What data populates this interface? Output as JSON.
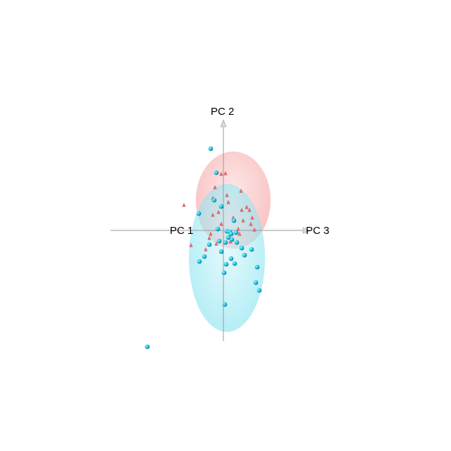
{
  "chart_data": {
    "type": "scatter",
    "projection": "3d-pca",
    "axes": [
      "PC 1",
      "PC 2",
      "PC 3"
    ],
    "grid": false,
    "legend": "none",
    "colors": {
      "group_red": "#f26d6d",
      "group_cyan": "#19c3e0",
      "ellipse_red": "#f7a1a1",
      "ellipse_cyan": "#8fe6f2",
      "axis": "#9a9a9a"
    },
    "ellipsoids": [
      {
        "group": "red",
        "cx": 0.14,
        "cy": 0.43,
        "rx": 0.53,
        "ry": 0.69,
        "color": "#f7a1a1"
      },
      {
        "group": "cyan",
        "cx": 0.05,
        "cy": -0.39,
        "rx": 0.54,
        "ry": 1.05,
        "color": "#8fe6f2"
      }
    ],
    "series": [
      {
        "marker": "cone",
        "color": "#f26d6d",
        "points": [
          {
            "x": -0.03,
            "y": 0.8
          },
          {
            "x": 0.03,
            "y": 0.81
          },
          {
            "x": -0.12,
            "y": 0.61
          },
          {
            "x": -0.15,
            "y": 0.46
          },
          {
            "x": 0.05,
            "y": 0.5
          },
          {
            "x": 0.07,
            "y": 0.4
          },
          {
            "x": 0.25,
            "y": 0.56
          },
          {
            "x": 0.33,
            "y": 0.33
          },
          {
            "x": 0.37,
            "y": 0.29
          },
          {
            "x": 0.26,
            "y": 0.29
          },
          {
            "x": 0.41,
            "y": 0.18
          },
          {
            "x": 0.28,
            "y": 0.14
          },
          {
            "x": 0.39,
            "y": 0.09
          },
          {
            "x": -0.07,
            "y": 0.26
          },
          {
            "x": -0.15,
            "y": 0.22
          },
          {
            "x": -0.03,
            "y": 0.09
          },
          {
            "x": 0.14,
            "y": 0.18
          },
          {
            "x": 0.21,
            "y": 0.02
          },
          {
            "x": 0.44,
            "y": 0.01
          },
          {
            "x": 0.23,
            "y": -0.05
          },
          {
            "x": -0.56,
            "y": 0.36
          },
          {
            "x": -0.46,
            "y": -0.21
          },
          {
            "x": -0.18,
            "y": -0.05
          },
          {
            "x": -0.2,
            "y": -0.11
          },
          {
            "x": -0.1,
            "y": -0.19
          },
          {
            "x": -0.25,
            "y": -0.27
          },
          {
            "x": 0.1,
            "y": -0.16
          }
        ]
      },
      {
        "marker": "sphere",
        "color": "#19c3e0",
        "points": [
          {
            "x": -0.18,
            "y": 1.16
          },
          {
            "x": -0.1,
            "y": 0.82
          },
          {
            "x": -0.13,
            "y": 0.43
          },
          {
            "x": -0.03,
            "y": 0.34
          },
          {
            "x": 0.15,
            "y": 0.14
          },
          {
            "x": -0.35,
            "y": 0.24
          },
          {
            "x": -0.08,
            "y": 0.02
          },
          {
            "x": 0.05,
            "y": -0.01
          },
          {
            "x": 0.09,
            "y": -0.02
          },
          {
            "x": 0.11,
            "y": -0.05
          },
          {
            "x": 0.18,
            "y": -0.03
          },
          {
            "x": 0.07,
            "y": -0.1
          },
          {
            "x": 0.12,
            "y": -0.13
          },
          {
            "x": -0.06,
            "y": -0.15
          },
          {
            "x": 0.03,
            "y": -0.17
          },
          {
            "x": 0.19,
            "y": -0.17
          },
          {
            "x": -0.2,
            "y": -0.2
          },
          {
            "x": 0.26,
            "y": -0.25
          },
          {
            "x": 0.4,
            "y": -0.27
          },
          {
            "x": -0.03,
            "y": -0.3
          },
          {
            "x": 0.3,
            "y": -0.35
          },
          {
            "x": -0.27,
            "y": -0.37
          },
          {
            "x": 0.11,
            "y": -0.4
          },
          {
            "x": -0.34,
            "y": -0.44
          },
          {
            "x": 0.04,
            "y": -0.48
          },
          {
            "x": 0.16,
            "y": -0.47
          },
          {
            "x": 0.48,
            "y": -0.52
          },
          {
            "x": 0.01,
            "y": -0.6
          },
          {
            "x": 0.46,
            "y": -0.74
          },
          {
            "x": 0.51,
            "y": -0.85
          },
          {
            "x": 0.02,
            "y": -1.05
          },
          {
            "x": -1.08,
            "y": -1.65
          }
        ]
      }
    ]
  }
}
